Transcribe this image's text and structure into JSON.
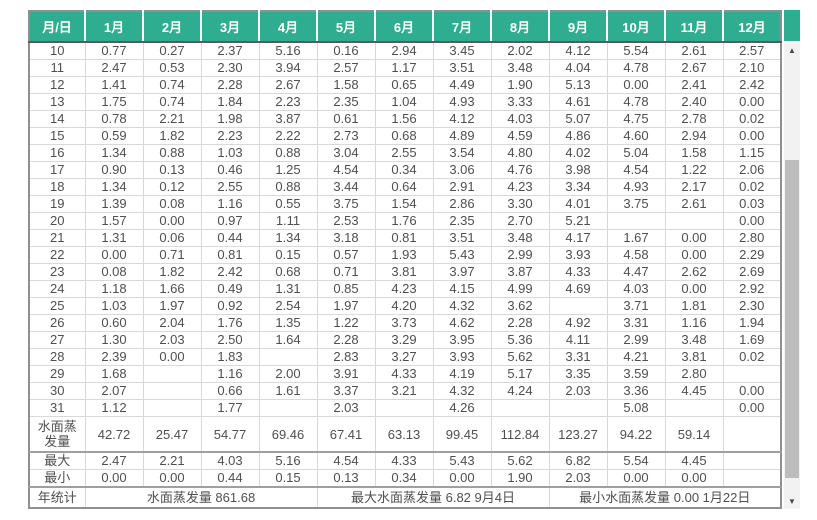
{
  "colors": {
    "header_bg": "#2ead90",
    "header_text": "#ffffff",
    "cell_text": "#4f4f4f",
    "grid_line": "#d9d9d9"
  },
  "scrollbar": {
    "up_icon": "▲",
    "down_icon": "▼"
  },
  "table": {
    "columns": [
      "月/日",
      "1月",
      "2月",
      "3月",
      "4月",
      "5月",
      "6月",
      "7月",
      "8月",
      "9月",
      "10月",
      "11月",
      "12月"
    ],
    "rows": [
      {
        "day": "10",
        "values": [
          "0.77",
          "0.27",
          "2.37",
          "5.16",
          "0.16",
          "2.94",
          "3.45",
          "2.02",
          "4.12",
          "5.54",
          "2.61",
          "2.57"
        ]
      },
      {
        "day": "11",
        "values": [
          "2.47",
          "0.53",
          "2.30",
          "3.94",
          "2.57",
          "1.17",
          "3.51",
          "3.48",
          "4.04",
          "4.78",
          "2.67",
          "2.10"
        ]
      },
      {
        "day": "12",
        "values": [
          "1.41",
          "0.74",
          "2.28",
          "2.67",
          "1.58",
          "0.65",
          "4.49",
          "1.90",
          "5.13",
          "0.00",
          "2.41",
          "2.42"
        ]
      },
      {
        "day": "13",
        "values": [
          "1.75",
          "0.74",
          "1.84",
          "2.23",
          "2.35",
          "1.04",
          "4.93",
          "3.33",
          "4.61",
          "4.78",
          "2.40",
          "0.00"
        ]
      },
      {
        "day": "14",
        "values": [
          "0.78",
          "2.21",
          "1.98",
          "3.87",
          "0.61",
          "1.56",
          "4.12",
          "4.03",
          "5.07",
          "4.75",
          "2.78",
          "0.02"
        ]
      },
      {
        "day": "15",
        "values": [
          "0.59",
          "1.82",
          "2.23",
          "2.22",
          "2.73",
          "0.68",
          "4.89",
          "4.59",
          "4.86",
          "4.60",
          "2.94",
          "0.00"
        ]
      },
      {
        "day": "16",
        "values": [
          "1.34",
          "0.88",
          "1.03",
          "0.88",
          "3.04",
          "2.55",
          "3.54",
          "4.80",
          "4.02",
          "5.04",
          "1.58",
          "1.15"
        ]
      },
      {
        "day": "17",
        "values": [
          "0.90",
          "0.13",
          "0.46",
          "1.25",
          "4.54",
          "0.34",
          "3.06",
          "4.76",
          "3.98",
          "4.54",
          "1.22",
          "2.06"
        ]
      },
      {
        "day": "18",
        "values": [
          "1.34",
          "0.12",
          "2.55",
          "0.88",
          "3.44",
          "0.64",
          "2.91",
          "4.23",
          "3.34",
          "4.93",
          "2.17",
          "0.02"
        ]
      },
      {
        "day": "19",
        "values": [
          "1.39",
          "0.08",
          "1.16",
          "0.55",
          "3.75",
          "1.54",
          "2.86",
          "3.30",
          "4.01",
          "3.75",
          "2.61",
          "0.03"
        ]
      },
      {
        "day": "20",
        "values": [
          "1.57",
          "0.00",
          "0.97",
          "1.11",
          "2.53",
          "1.76",
          "2.35",
          "2.70",
          "5.21",
          "",
          "",
          "0.00"
        ]
      },
      {
        "day": "21",
        "values": [
          "1.31",
          "0.06",
          "0.44",
          "1.34",
          "3.18",
          "0.81",
          "3.51",
          "3.48",
          "4.17",
          "1.67",
          "0.00",
          "2.80"
        ]
      },
      {
        "day": "22",
        "values": [
          "0.00",
          "0.71",
          "0.81",
          "0.15",
          "0.57",
          "1.93",
          "5.43",
          "2.99",
          "3.93",
          "4.58",
          "0.00",
          "2.29"
        ]
      },
      {
        "day": "23",
        "values": [
          "0.08",
          "1.82",
          "2.42",
          "0.68",
          "0.71",
          "3.81",
          "3.97",
          "3.87",
          "4.33",
          "4.47",
          "2.62",
          "2.69"
        ]
      },
      {
        "day": "24",
        "values": [
          "1.18",
          "1.66",
          "0.49",
          "1.31",
          "0.85",
          "4.23",
          "4.15",
          "4.99",
          "4.69",
          "4.03",
          "0.00",
          "2.92"
        ]
      },
      {
        "day": "25",
        "values": [
          "1.03",
          "1.97",
          "0.92",
          "2.54",
          "1.97",
          "4.20",
          "4.32",
          "3.62",
          "",
          "3.71",
          "1.81",
          "2.30"
        ]
      },
      {
        "day": "26",
        "values": [
          "0.60",
          "2.04",
          "1.76",
          "1.35",
          "1.22",
          "3.73",
          "4.62",
          "2.28",
          "4.92",
          "3.31",
          "1.16",
          "1.94"
        ]
      },
      {
        "day": "27",
        "values": [
          "1.30",
          "2.03",
          "2.50",
          "1.64",
          "2.28",
          "3.29",
          "3.95",
          "5.36",
          "4.11",
          "2.99",
          "3.48",
          "1.69"
        ]
      },
      {
        "day": "28",
        "values": [
          "2.39",
          "0.00",
          "1.83",
          "",
          "2.83",
          "3.27",
          "3.93",
          "5.62",
          "3.31",
          "4.21",
          "3.81",
          "0.02"
        ]
      },
      {
        "day": "29",
        "values": [
          "1.68",
          "",
          "1.16",
          "2.00",
          "3.91",
          "4.33",
          "4.19",
          "5.17",
          "3.35",
          "3.59",
          "2.80",
          ""
        ]
      },
      {
        "day": "30",
        "values": [
          "2.07",
          "",
          "0.66",
          "1.61",
          "3.37",
          "3.21",
          "4.32",
          "4.24",
          "2.03",
          "3.36",
          "4.45",
          "0.00"
        ]
      },
      {
        "day": "31",
        "values": [
          "1.12",
          "",
          "1.77",
          "",
          "2.03",
          "",
          "4.26",
          "",
          "",
          "5.08",
          "",
          "0.00"
        ]
      }
    ],
    "evap_row": {
      "label": "水面蒸发量",
      "values": [
        "42.72",
        "25.47",
        "54.77",
        "69.46",
        "67.41",
        "63.13",
        "99.45",
        "112.84",
        "123.27",
        "94.22",
        "59.14",
        ""
      ]
    },
    "max_row": {
      "label": "最大",
      "values": [
        "2.47",
        "2.21",
        "4.03",
        "5.16",
        "4.54",
        "4.33",
        "5.43",
        "5.62",
        "6.82",
        "5.54",
        "4.45",
        ""
      ]
    },
    "min_row": {
      "label": "最小",
      "values": [
        "0.00",
        "0.00",
        "0.44",
        "0.15",
        "0.13",
        "0.34",
        "0.00",
        "1.90",
        "2.03",
        "0.00",
        "0.00",
        ""
      ]
    },
    "annual_row": {
      "label": "年统计",
      "cells": [
        "水面蒸发量 861.68",
        "最大水面蒸发量 6.82 9月4日",
        "最小水面蒸发量 0.00 1月22日"
      ]
    }
  }
}
